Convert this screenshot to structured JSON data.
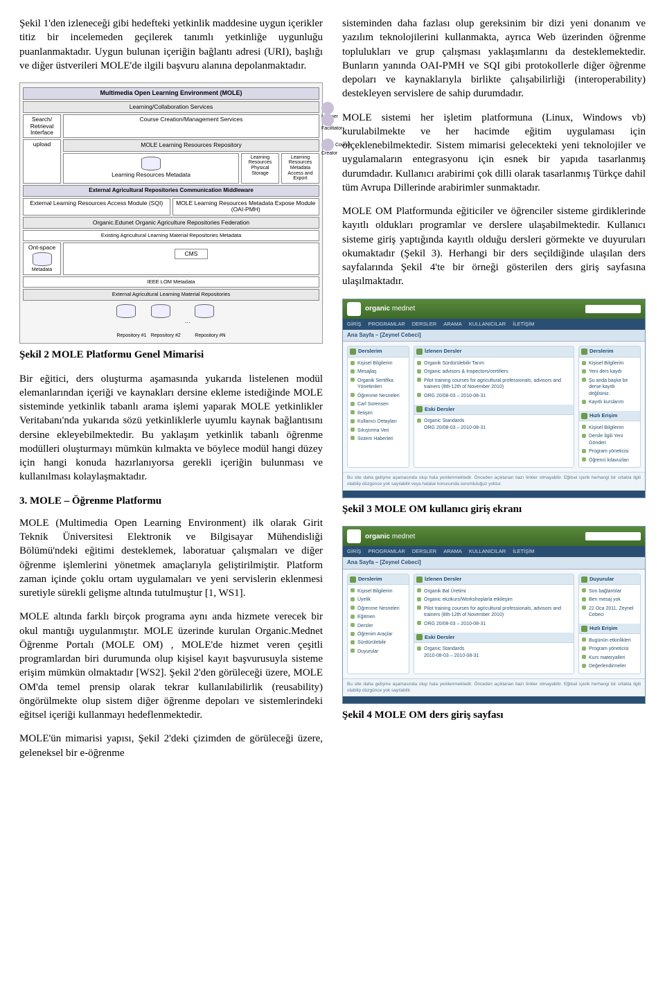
{
  "col1": {
    "p1": "Şekil 1'den izleneceği gibi hedefteki yetkinlik maddesine uygun içerikler titiz bir incelemeden geçilerek tanımlı yetkinliğe uygunluğu puanlanmaktadır. Uygun bulunan içeriğin bağlantı adresi (URI), başlığı ve diğer üstverileri MOLE'de ilgili başvuru alanına depolanmaktadır.",
    "fig2": {
      "caption": "Şekil 2 MOLE Platformu Genel Mimarisi",
      "title": "Multimedia Open Learning Environment (MOLE)",
      "row_lcs": "Learning/Collaboration Services",
      "left_sri": "Search/\nRetrieval\nInterface",
      "row_ccms": "Course Creation/Management Services",
      "row_mlrr": "MOLE Learning Resources Repository",
      "row_lrm": "Learning Resources Metadata",
      "side_upload": "upload",
      "side_lrps": "Learning Resources Physical Storage",
      "side_lrmae": "Learning Resources Metadata Access and Export",
      "row_eacm": "External Agricultural Repositories Communication Middleware",
      "left_elram": "External Learning Resources Access Module (SQI)",
      "right_mlrmem": "MOLE Learning Resources Metadata Expose Module (OAI-PMH)",
      "row_oeofed": "Organic.Edunet Organic Agriculture Repositories Federation",
      "row_ealmrm": "Existing Agricultural Learning Material Repositories Metadata",
      "ont": "Ont-space",
      "meta": "Metadata",
      "cms": "CMS",
      "row_ieee": "IEEE LOM Metadata",
      "row_ealmr": "External Agricultural Learning Material Repositories",
      "repo1": "Repository #1",
      "repo2": "Repository #2",
      "repoN": "Repository #N",
      "learner": "Learner",
      "facilitator": "Facilitator",
      "creator": "Course Creator"
    },
    "p2": "Bir eğitici, ders oluşturma aşamasında yukarıda listelenen modül elemanlarından içeriği ve kaynakları dersine ekleme istediğinde MOLE sisteminde yetkinlik tabanlı arama işlemi yaparak MOLE yetkinlikler Veritabanı'nda yukarıda sözü yetkinliklerle uyumlu kaynak bağlantısını dersine ekleyebilmektedir. Bu yaklaşım yetkinlik tabanlı öğrenme modülleri oluşturmayı mümkün kılmakta ve böylece modül hangi düzey için hangi konuda hazırlanıyorsa gerekli içeriğin bulunması ve kullanılması kolaylaşmaktadır.",
    "sec3": "3.   MOLE – Öğrenme Platformu",
    "p3": "MOLE (Multimedia Open Learning Environment) ilk olarak Girit Teknik Üniversitesi Elektronik ve Bilgisayar Mühendisliği Bölümü'ndeki eğitimi desteklemek, laboratuar çalışmaları ve diğer öğrenme işlemlerini yönetmek amaçlarıyla geliştirilmiştir. Platform zaman içinde çoklu ortam uygulamaları ve yeni servislerin eklenmesi suretiyle sürekli gelişme altında tutulmuştur [1, WS1].",
    "p4": "MOLE altında farklı birçok programa aynı anda hizmete verecek bir okul mantığı uygulanmıştır. MOLE üzerinde kurulan Organic.Mednet Öğrenme Portalı (MOLE OM) , MOLE'de hizmet veren çeşitli programlardan biri durumunda olup kişisel kayıt başvurusuyla sisteme erişim mümkün olmaktadır [WS2]. Şekil 2'den görüleceği üzere, MOLE OM'da temel prensip olarak tekrar kullanılabilirlik (reusability) öngörülmekte olup sistem diğer öğrenme depoları ve sistemlerindeki eğitsel içeriği kullanmayı hedeflenmektedir.",
    "p5": "MOLE'ün mimarisi yapısı, Şekil 2'deki çizimden de görüleceği üzere, geleneksel bir e-öğrenme"
  },
  "col2": {
    "p1": "sisteminden daha fazlası olup gereksinim bir dizi yeni donanım ve yazılım teknolojilerini kullanmakta, ayrıca Web üzerinden öğrenme toplulukları ve grup çalışması yaklaşımlarını da desteklemektedir. Bunların yanında OAI-PMH ve SQI gibi protokollerle diğer öğrenme depoları ve kaynaklarıyla birlikte çalışabilirliği (interoperability) destekleyen servislere de sahip durumdadır.",
    "p2": "MOLE sistemi her işletim  platformuna (Linux, Windows vb) kurulabilmekte ve her hacimde eğitim uygulaması için ölçeklenebilmektedir. Sistem mimarisi gelecekteki yeni teknolojiler ve uygulamaların entegrasyonu için esnek bir yapıda tasarlanmış durumdadır. Kullanıcı arabirimi çok dilli olarak tasarlanmış Türkçe dahil tüm Avrupa Dillerinde arabirimler sunmaktadır.",
    "p3": "MOLE OM Platformunda eğiticiler ve öğrenciler sisteme girdiklerinde kayıtlı oldukları programlar ve derslere ulaşabilmektedir. Kullanıcı sisteme giriş yaptığında kayıtlı olduğu dersleri görmekte ve duyuruları okumaktadır (Şekil 3). Herhangi bir ders seçildiğinde ulaşılan ders sayfalarında Şekil 4'te bir örneği gösterilen ders giriş sayfasına ulaşılmaktadır.",
    "fig3": {
      "caption": "Şekil 3 MOLE OM kullanıcı giriş ekranı",
      "brand1": "organic",
      "brand2": "mednet",
      "nav": [
        "GİRİŞ",
        "PROGRAMLAR",
        "DERSLER",
        "ARAMA",
        "KULLANICILAR",
        "İLETİŞİM"
      ],
      "pagetitle": "Ana Sayfa – [Zeynel Cebeci]",
      "left_panel": "Derslerim",
      "left_items": [
        "Kişisel Bilgilerim",
        "Mesajlaş",
        "Organik Sertifika Yönetimleri",
        "Öğrenme Nesneleri",
        "Carl Sorensen",
        "İletişim",
        "Kullanıcı Detayları",
        "Sıkıştırma Veri",
        "Sistem Haberleri"
      ],
      "mid_panel": "İzlenen Dersler",
      "mid_items": [
        "Organik Sürdürülebilir Tarım",
        "Organic advisors & Inspectors/certifiers",
        "Pilot training courses for agricultural professionals, advisors and trainers (8th-12th of November 2010)",
        "ORG 20/08-03 – 2010-08-31"
      ],
      "mid_panel2": "Eski Dersler",
      "mid_items2": [
        "Organic Standards\nORG 20/08-03 – 2010-08-31"
      ],
      "right_panel": "Derslerim",
      "right_items": [
        "Kişisel Bilgilerim",
        "Yeni ders kaydı",
        "Şu anda başka bir derse kayıtlı değilsiniz.",
        "Kayıtlı kurslarım"
      ],
      "right_panel2": "Hızlı Erişim",
      "right_items2": [
        "Kişisel Bilgilerim",
        "Dersle İlgili Yeni Gönderi",
        "Program yöneticisi",
        "Öğrenci kılavuzları"
      ],
      "footer": "Bu site daha gelişme aşamasında olup hala yenilenmektedir. Önceden açıklanan bazı linkler olmayabilir. Eğitsel içerik herhangi bir ortakla ilgili olabilip düzgünce yok sayılabilir veya hatalar konusunda sorumluluğuz yoktur."
    },
    "fig4": {
      "caption": "Şekil 4 MOLE OM ders giriş sayfası",
      "pagetitle": "Ana Sayfa – [Zeynel Cebeci]",
      "left_panel": "Derslerim",
      "left_items": [
        "Kişisel Bilgilerim",
        "Üyelik",
        "Öğrenme Nesneleri",
        "Eğitmen",
        "Dersler",
        "Öğrenim Araçlar",
        "Sürdürülebilir",
        "Duyurular"
      ],
      "mid_panel": "İzlenen Dersler",
      "mid_items": [
        "Organik Bal Üretimi",
        "Organic ekzikurs/Workshoplarla etkileşim",
        "Pilot training courses for agricultural professionals, advisors and trainers (8th-12th of November 2010)",
        "ORG 20/08-03 – 2010-08-31"
      ],
      "mid_panel2": "Eski Dersler",
      "mid_items2": [
        "Organic Standards\n2010-08-03 – 2010-08-31"
      ],
      "right_panel": "Duyurular",
      "right_items": [
        "Son bağlantılar",
        "Ben mesaj yok",
        "22 Oca 2011, Zeynel Cebeci"
      ],
      "right_panel2": "Hızlı Erişim",
      "right_items2": [
        "Bugünün etkinlikleri",
        "Program yöneticisi",
        "Kurs materyalleri",
        "Değerlendirmeler"
      ],
      "footer": "Bu site daha gelişme aşamasında olup hala yenilenmektedir. Önceden açıklanan bazı linkler olmayabilir. Eğitsel içerik herhangi bir ortakla ilgili olabilip düzgünce yok sayılabilir."
    }
  }
}
